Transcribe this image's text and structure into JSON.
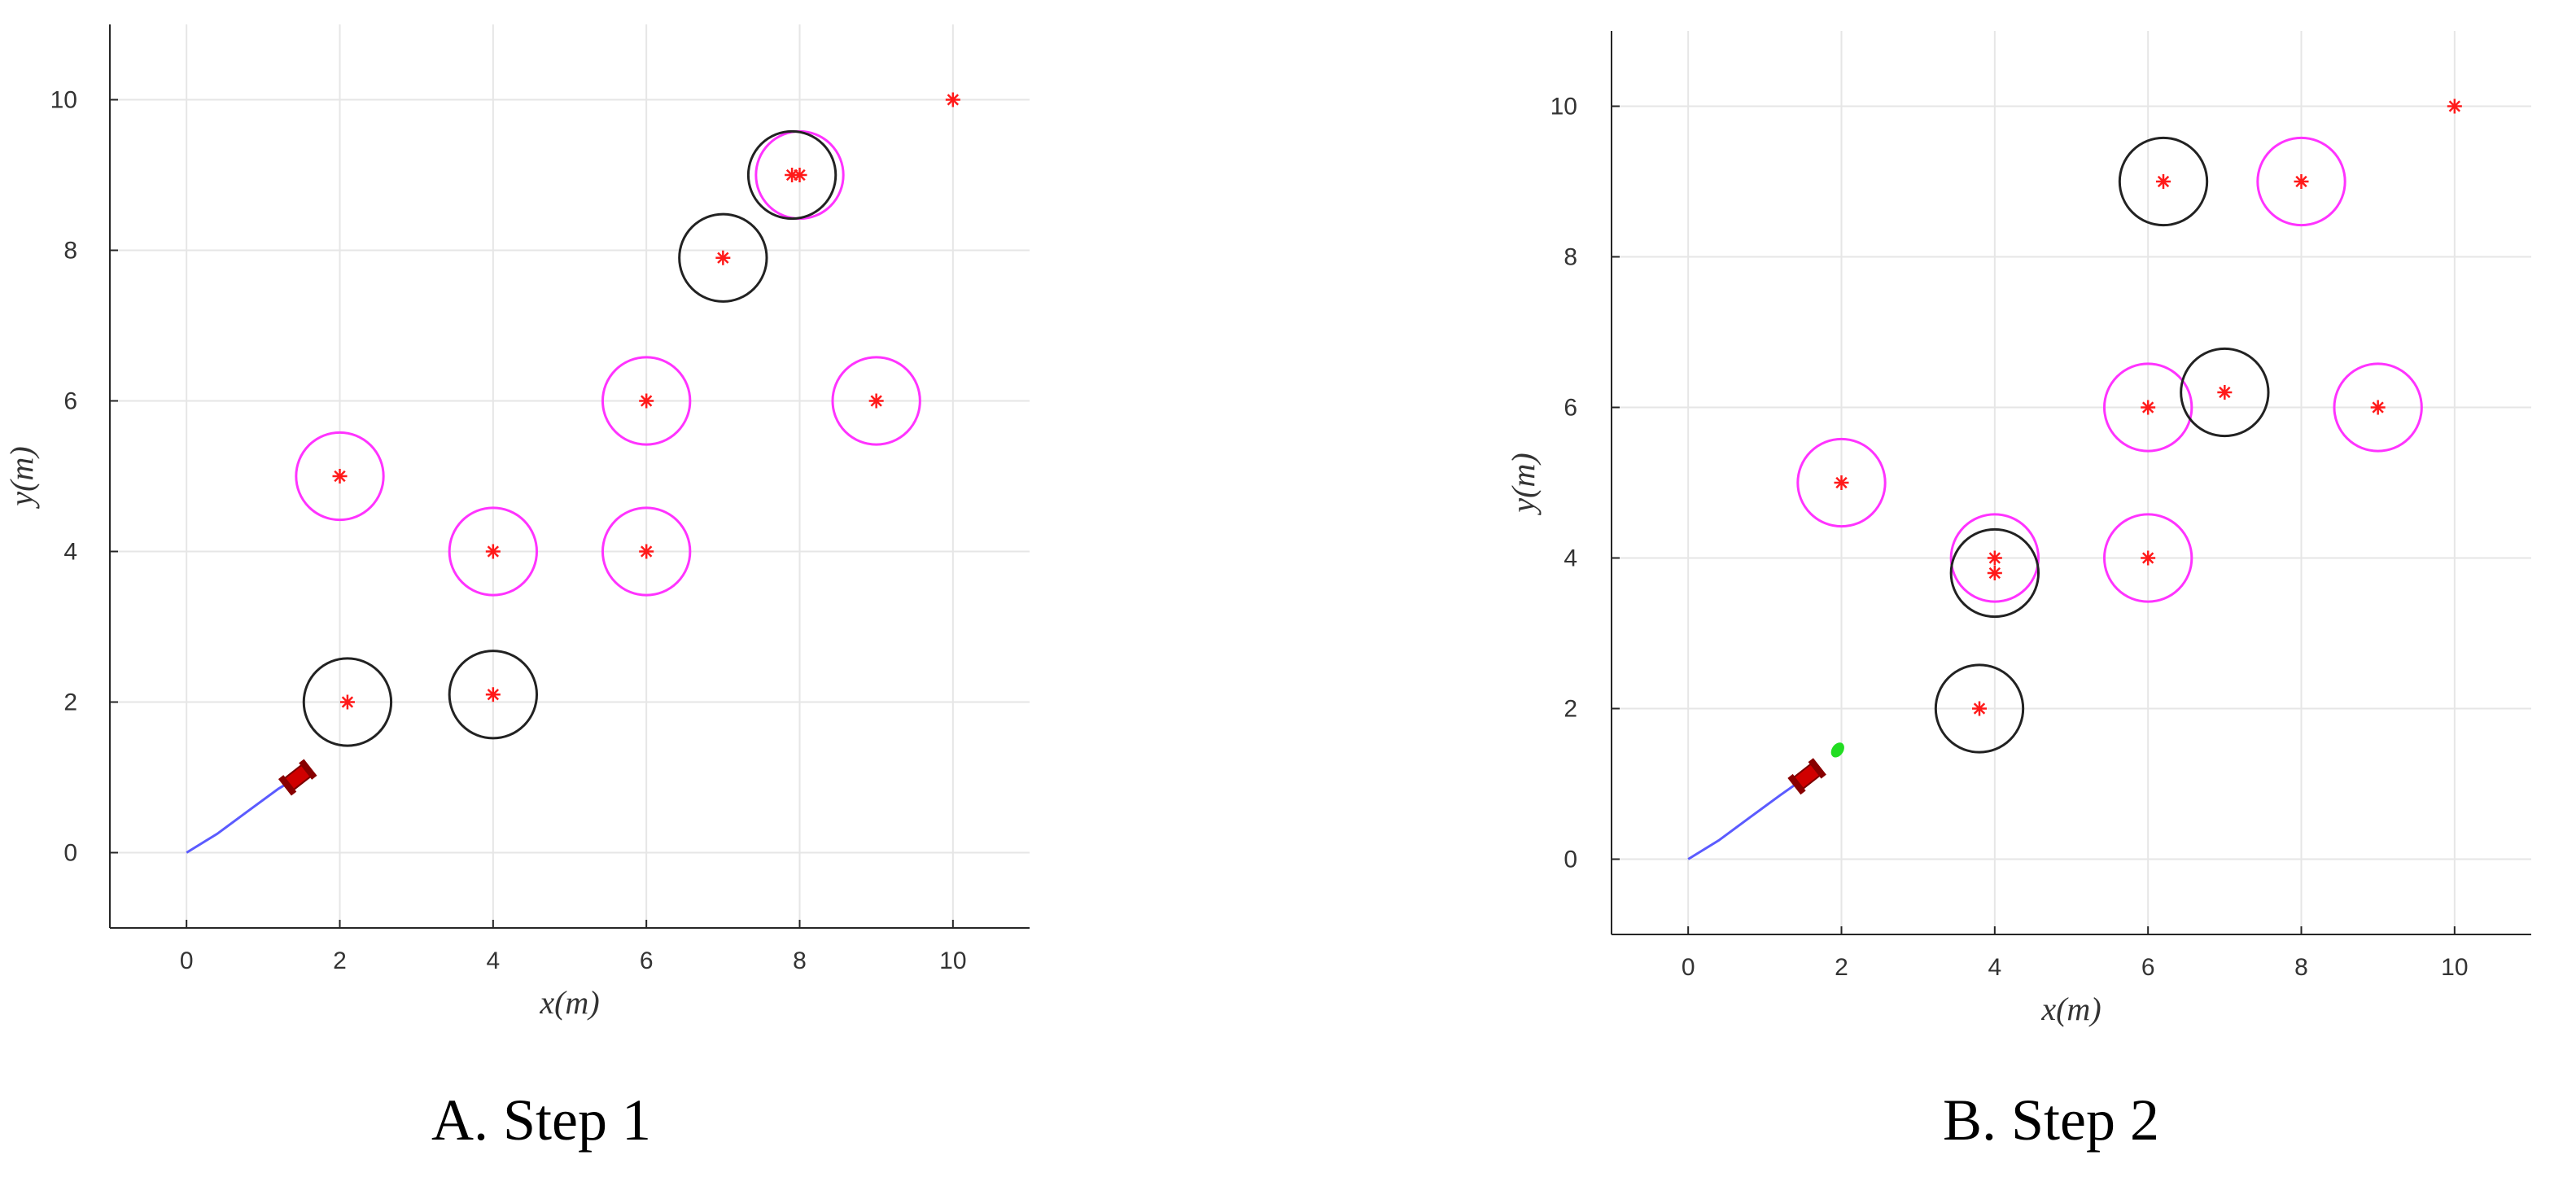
{
  "colors": {
    "grid": "#e6e6e6",
    "axis": "#262626",
    "obstacle_known": "#ff33ff",
    "obstacle_dynamic": "#222222",
    "star": "#ff1a1a",
    "path": "#5b5bff",
    "robot": "#d00000",
    "lookahead": "#22dd22"
  },
  "chart_data": [
    {
      "type": "scatter",
      "title": "",
      "caption": "A. Step 1",
      "xlabel": "x(m)",
      "ylabel": "y(m)",
      "xlim": [
        -1,
        11
      ],
      "ylim": [
        -1,
        11
      ],
      "xticks": [
        "0",
        "2",
        "4",
        "6",
        "8",
        "10"
      ],
      "yticks": [
        "0",
        "2",
        "4",
        "6",
        "8",
        "10"
      ],
      "grid": true,
      "known_obstacles": [
        [
          2,
          5
        ],
        [
          4,
          4
        ],
        [
          6,
          6
        ],
        [
          6,
          4
        ],
        [
          9,
          6
        ],
        [
          8,
          9
        ]
      ],
      "dynamic_obstacles": [
        [
          2.1,
          2
        ],
        [
          4,
          2.1
        ],
        [
          7,
          7.9
        ],
        [
          7.9,
          9
        ]
      ],
      "goal": [
        10,
        10
      ],
      "path": [
        [
          0,
          0
        ],
        [
          0.4,
          0.25
        ],
        [
          0.8,
          0.55
        ],
        [
          1.2,
          0.85
        ],
        [
          1.45,
          1.0
        ]
      ],
      "robot": [
        1.45,
        1.0
      ],
      "lookahead": null
    },
    {
      "type": "scatter",
      "title": "",
      "caption": "B. Step 2",
      "xlabel": "x(m)",
      "ylabel": "y(m)",
      "xlim": [
        -1,
        11
      ],
      "ylim": [
        -1,
        11
      ],
      "xticks": [
        "0",
        "2",
        "4",
        "6",
        "8",
        "10"
      ],
      "yticks": [
        "0",
        "2",
        "4",
        "6",
        "8",
        "10"
      ],
      "grid": true,
      "known_obstacles": [
        [
          2,
          5
        ],
        [
          4,
          4
        ],
        [
          6,
          6
        ],
        [
          6,
          4
        ],
        [
          9,
          6
        ],
        [
          8,
          9
        ]
      ],
      "dynamic_obstacles": [
        [
          3.8,
          2
        ],
        [
          4,
          3.8
        ],
        [
          7,
          6.2
        ],
        [
          6.2,
          9
        ]
      ],
      "goal": [
        10,
        10
      ],
      "path": [
        [
          0,
          0
        ],
        [
          0.4,
          0.25
        ],
        [
          0.8,
          0.55
        ],
        [
          1.2,
          0.85
        ],
        [
          1.55,
          1.1
        ]
      ],
      "robot": [
        1.55,
        1.1
      ],
      "lookahead": [
        1.95,
        1.45
      ]
    }
  ]
}
